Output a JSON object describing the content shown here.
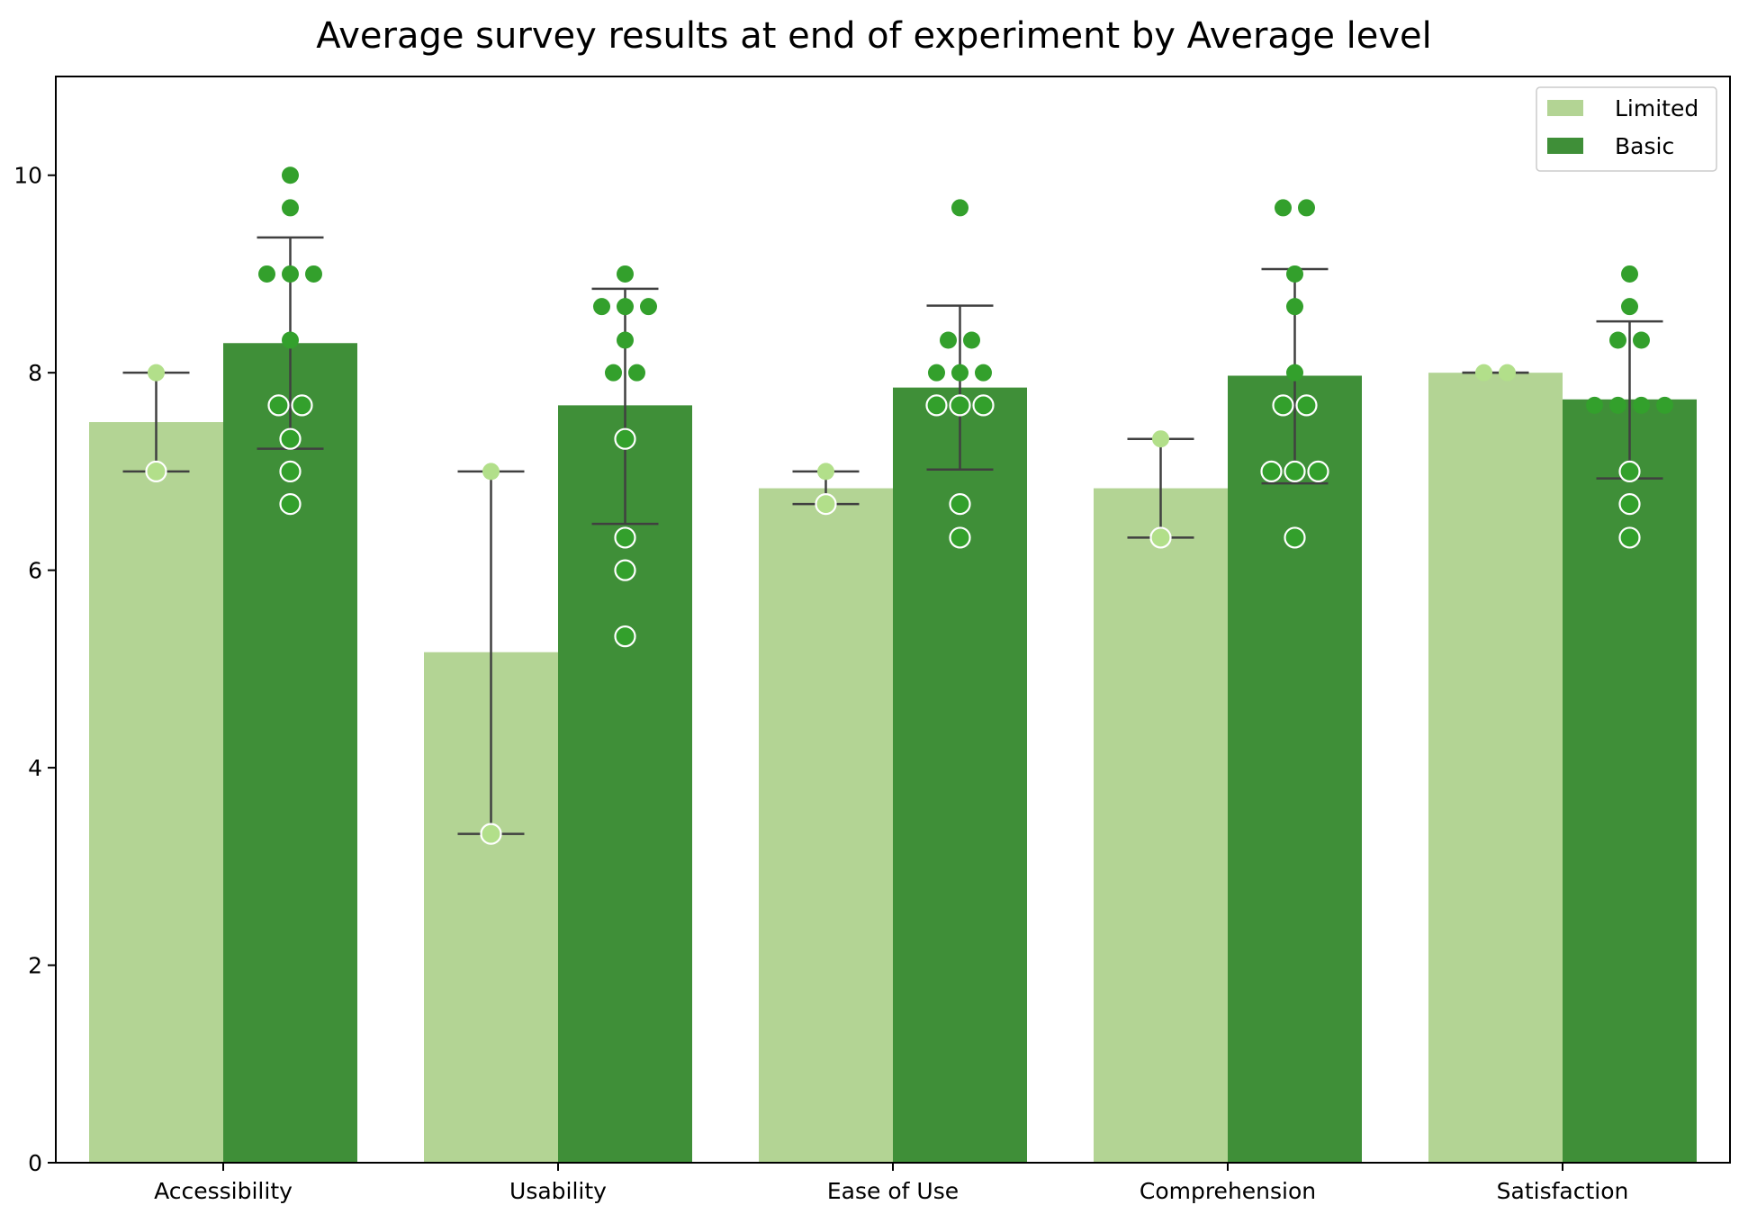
{
  "chart_data": {
    "type": "bar",
    "title": "Average survey results at end of experiment by Average level",
    "xlabel": "",
    "ylabel": "",
    "categories": [
      "Accessibility",
      "Usability",
      "Ease of Use",
      "Comprehension",
      "Satisfaction"
    ],
    "ylim": [
      0,
      11
    ],
    "yticks": [
      0,
      2,
      4,
      6,
      8,
      10
    ],
    "grid": false,
    "legend_position": "top-right",
    "series": [
      {
        "name": "Limited",
        "color": "#b3d494",
        "point_color": "#b2df8a",
        "values": [
          7.5,
          5.17,
          6.83,
          6.83,
          8.0
        ],
        "error_low": [
          7.0,
          3.33,
          6.67,
          6.33,
          8.0
        ],
        "error_high": [
          8.0,
          7.0,
          7.0,
          7.33,
          8.0
        ],
        "points": [
          [
            {
              "y": 8.0,
              "style": "filled"
            },
            {
              "y": 7.0,
              "style": "hollow"
            }
          ],
          [
            {
              "y": 7.0,
              "style": "filled"
            },
            {
              "y": 3.33,
              "style": "hollow"
            }
          ],
          [
            {
              "y": 7.0,
              "style": "filled"
            },
            {
              "y": 6.67,
              "style": "hollow"
            }
          ],
          [
            {
              "y": 7.33,
              "style": "filled"
            },
            {
              "y": 6.33,
              "style": "hollow"
            }
          ],
          [
            {
              "y": 8.0,
              "style": "filled"
            },
            {
              "y": 8.0,
              "style": "filled"
            }
          ]
        ]
      },
      {
        "name": "Basic",
        "color": "#3f8f38",
        "point_color": "#33a02c",
        "values": [
          8.3,
          7.67,
          7.85,
          7.97,
          7.73
        ],
        "error_low": [
          7.23,
          6.47,
          7.02,
          6.88,
          6.93
        ],
        "error_high": [
          9.37,
          8.85,
          8.68,
          9.05,
          8.52
        ],
        "points": [
          [
            {
              "y": 10.0,
              "style": "filled"
            },
            {
              "y": 9.67,
              "style": "filled"
            },
            {
              "y": 9.0,
              "style": "filled"
            },
            {
              "y": 9.0,
              "style": "filled"
            },
            {
              "y": 9.0,
              "style": "filled"
            },
            {
              "y": 8.33,
              "style": "filled"
            },
            {
              "y": 7.67,
              "style": "hollow"
            },
            {
              "y": 7.67,
              "style": "hollow"
            },
            {
              "y": 7.33,
              "style": "hollow"
            },
            {
              "y": 7.0,
              "style": "hollow"
            },
            {
              "y": 6.67,
              "style": "hollow"
            }
          ],
          [
            {
              "y": 9.0,
              "style": "filled"
            },
            {
              "y": 8.67,
              "style": "filled"
            },
            {
              "y": 8.67,
              "style": "filled"
            },
            {
              "y": 8.67,
              "style": "filled"
            },
            {
              "y": 8.33,
              "style": "filled"
            },
            {
              "y": 8.0,
              "style": "filled"
            },
            {
              "y": 8.0,
              "style": "filled"
            },
            {
              "y": 7.33,
              "style": "hollow"
            },
            {
              "y": 6.33,
              "style": "hollow"
            },
            {
              "y": 6.0,
              "style": "hollow"
            },
            {
              "y": 5.33,
              "style": "hollow"
            }
          ],
          [
            {
              "y": 9.67,
              "style": "filled"
            },
            {
              "y": 8.33,
              "style": "filled"
            },
            {
              "y": 8.33,
              "style": "filled"
            },
            {
              "y": 8.0,
              "style": "filled"
            },
            {
              "y": 8.0,
              "style": "filled"
            },
            {
              "y": 8.0,
              "style": "filled"
            },
            {
              "y": 7.67,
              "style": "hollow"
            },
            {
              "y": 7.67,
              "style": "hollow"
            },
            {
              "y": 7.67,
              "style": "hollow"
            },
            {
              "y": 6.67,
              "style": "hollow"
            },
            {
              "y": 6.33,
              "style": "hollow"
            }
          ],
          [
            {
              "y": 9.67,
              "style": "filled"
            },
            {
              "y": 9.67,
              "style": "filled"
            },
            {
              "y": 9.0,
              "style": "filled"
            },
            {
              "y": 8.67,
              "style": "filled"
            },
            {
              "y": 8.0,
              "style": "filled"
            },
            {
              "y": 7.67,
              "style": "hollow"
            },
            {
              "y": 7.67,
              "style": "hollow"
            },
            {
              "y": 7.0,
              "style": "hollow"
            },
            {
              "y": 7.0,
              "style": "hollow"
            },
            {
              "y": 7.0,
              "style": "hollow"
            },
            {
              "y": 6.33,
              "style": "hollow"
            }
          ],
          [
            {
              "y": 9.0,
              "style": "filled"
            },
            {
              "y": 8.67,
              "style": "filled"
            },
            {
              "y": 8.33,
              "style": "filled"
            },
            {
              "y": 8.33,
              "style": "filled"
            },
            {
              "y": 7.67,
              "style": "filled"
            },
            {
              "y": 7.67,
              "style": "filled"
            },
            {
              "y": 7.67,
              "style": "filled"
            },
            {
              "y": 7.67,
              "style": "filled"
            },
            {
              "y": 7.0,
              "style": "hollow"
            },
            {
              "y": 6.67,
              "style": "hollow"
            },
            {
              "y": 6.33,
              "style": "hollow"
            }
          ]
        ]
      }
    ]
  }
}
